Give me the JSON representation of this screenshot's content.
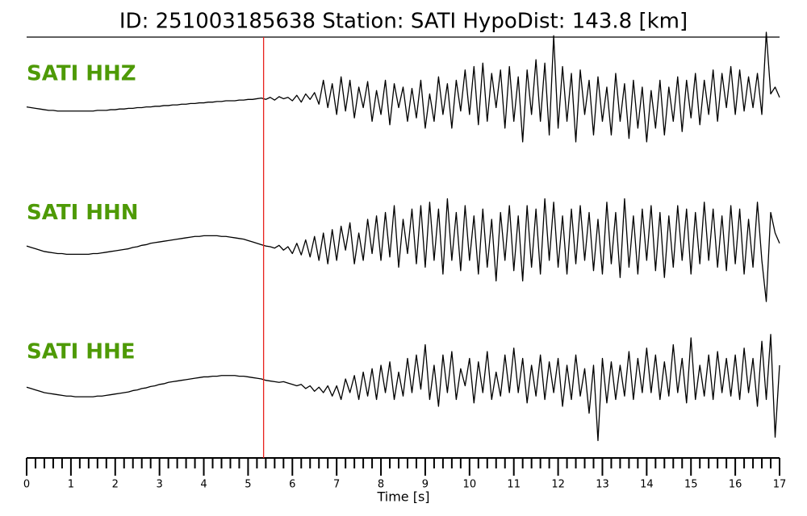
{
  "chart_data": {
    "type": "line",
    "stacked_panels": true,
    "title": "ID: 251003185638   Station: SATI   HypoDist:   143.8 [km]",
    "xlabel": "Time [s]",
    "xlim": [
      0,
      17
    ],
    "xticks": [
      0,
      1,
      2,
      3,
      4,
      5,
      6,
      7,
      8,
      9,
      10,
      11,
      12,
      13,
      14,
      15,
      16,
      17
    ],
    "xminorticks": [
      0.2,
      0.4,
      0.6,
      0.8,
      1.2,
      1.4,
      1.6,
      1.8,
      2.2,
      2.4,
      2.6,
      2.8,
      3.2,
      3.4,
      3.6,
      3.8,
      4.2,
      4.4,
      4.6,
      4.8,
      5.2,
      5.4,
      5.6,
      5.8,
      6.2,
      6.4,
      6.6,
      6.8,
      7.2,
      7.4,
      7.6,
      7.8,
      8.2,
      8.4,
      8.6,
      8.8,
      9.2,
      9.4,
      9.6,
      9.8,
      10.2,
      10.4,
      10.6,
      10.8,
      11.2,
      11.4,
      11.6,
      11.8,
      12.2,
      12.4,
      12.6,
      12.8,
      13.2,
      13.4,
      13.6,
      13.8,
      14.2,
      14.4,
      14.6,
      14.8,
      15.2,
      15.4,
      15.6,
      15.8,
      16.2,
      16.4,
      16.6,
      16.8
    ],
    "ylim": [
      -1,
      1
    ],
    "label_color": "#4e9a06",
    "markers": [
      {
        "x": 5.35,
        "color": "#e8211c"
      }
    ],
    "x": [
      0.0,
      0.1,
      0.2,
      0.3,
      0.4,
      0.5,
      0.6,
      0.7,
      0.8,
      0.9,
      1.0,
      1.1,
      1.2,
      1.3,
      1.4,
      1.5,
      1.6,
      1.7,
      1.8,
      1.9,
      2.0,
      2.1,
      2.2,
      2.3,
      2.4,
      2.5,
      2.6,
      2.7,
      2.8,
      2.9,
      3.0,
      3.1,
      3.2,
      3.3,
      3.4,
      3.5,
      3.6,
      3.7,
      3.8,
      3.9,
      4.0,
      4.1,
      4.2,
      4.3,
      4.4,
      4.5,
      4.6,
      4.7,
      4.8,
      4.9,
      5.0,
      5.1,
      5.2,
      5.3,
      5.4,
      5.5,
      5.6,
      5.7,
      5.8,
      5.9,
      6.0,
      6.1,
      6.2,
      6.3,
      6.4,
      6.5,
      6.6,
      6.7,
      6.8,
      6.9,
      7.0,
      7.1,
      7.2,
      7.3,
      7.4,
      7.5,
      7.6,
      7.7,
      7.8,
      7.9,
      8.0,
      8.1,
      8.2,
      8.3,
      8.4,
      8.5,
      8.6,
      8.7,
      8.8,
      8.9,
      9.0,
      9.1,
      9.2,
      9.3,
      9.4,
      9.5,
      9.6,
      9.7,
      9.8,
      9.9,
      10.0,
      10.1,
      10.2,
      10.3,
      10.4,
      10.5,
      10.6,
      10.7,
      10.8,
      10.9,
      11.0,
      11.1,
      11.2,
      11.3,
      11.4,
      11.5,
      11.6,
      11.7,
      11.8,
      11.9,
      12.0,
      12.1,
      12.2,
      12.3,
      12.4,
      12.5,
      12.6,
      12.7,
      12.8,
      12.9,
      13.0,
      13.1,
      13.2,
      13.3,
      13.4,
      13.5,
      13.6,
      13.7,
      13.8,
      13.9,
      14.0,
      14.1,
      14.2,
      14.3,
      14.4,
      14.5,
      14.6,
      14.7,
      14.8,
      14.9,
      15.0,
      15.1,
      15.2,
      15.3,
      15.4,
      15.5,
      15.6,
      15.7,
      15.8,
      15.9,
      16.0,
      16.1,
      16.2,
      16.3,
      16.4,
      16.5,
      16.6,
      16.7,
      16.8,
      16.9,
      17.0
    ],
    "series": [
      {
        "name": "SATI HHZ",
        "color": "#000000",
        "values": [
          -0.09,
          -0.1,
          -0.11,
          -0.12,
          -0.13,
          -0.14,
          -0.14,
          -0.15,
          -0.15,
          -0.15,
          -0.15,
          -0.15,
          -0.15,
          -0.15,
          -0.15,
          -0.15,
          -0.14,
          -0.14,
          -0.14,
          -0.13,
          -0.13,
          -0.12,
          -0.12,
          -0.11,
          -0.11,
          -0.1,
          -0.1,
          -0.09,
          -0.09,
          -0.08,
          -0.08,
          -0.07,
          -0.07,
          -0.06,
          -0.06,
          -0.05,
          -0.05,
          -0.04,
          -0.04,
          -0.03,
          -0.03,
          -0.02,
          -0.02,
          -0.01,
          -0.01,
          0.0,
          0.0,
          0.0,
          0.01,
          0.01,
          0.02,
          0.02,
          0.03,
          0.04,
          0.02,
          0.05,
          0.01,
          0.06,
          0.03,
          0.05,
          0.0,
          0.08,
          -0.02,
          0.1,
          0.02,
          0.12,
          -0.05,
          0.3,
          -0.1,
          0.25,
          -0.2,
          0.35,
          -0.15,
          0.3,
          -0.25,
          0.2,
          -0.1,
          0.28,
          -0.3,
          0.15,
          -0.2,
          0.3,
          -0.35,
          0.25,
          -0.1,
          0.2,
          -0.3,
          0.18,
          -0.25,
          0.3,
          -0.4,
          0.1,
          -0.3,
          0.35,
          -0.2,
          0.25,
          -0.4,
          0.3,
          -0.15,
          0.45,
          -0.2,
          0.5,
          -0.35,
          0.55,
          -0.3,
          0.4,
          -0.1,
          0.45,
          -0.4,
          0.5,
          -0.3,
          0.35,
          -0.6,
          0.45,
          -0.2,
          0.6,
          -0.3,
          0.55,
          -0.5,
          0.95,
          -0.4,
          0.5,
          -0.3,
          0.4,
          -0.6,
          0.45,
          -0.2,
          0.3,
          -0.5,
          0.35,
          -0.3,
          0.2,
          -0.5,
          0.4,
          -0.3,
          0.25,
          -0.55,
          0.3,
          -0.4,
          0.2,
          -0.6,
          0.15,
          -0.4,
          0.3,
          -0.5,
          0.2,
          -0.3,
          0.35,
          -0.45,
          0.3,
          -0.25,
          0.4,
          -0.35,
          0.3,
          -0.2,
          0.45,
          -0.3,
          0.4,
          -0.1,
          0.5,
          -0.2,
          0.45,
          -0.15,
          0.35,
          -0.1,
          0.4,
          -0.2,
          1.0,
          0.1,
          0.2,
          0.05
        ]
      },
      {
        "name": "SATI HHN",
        "color": "#000000",
        "values": [
          -0.09,
          -0.11,
          -0.13,
          -0.15,
          -0.17,
          -0.18,
          -0.19,
          -0.2,
          -0.2,
          -0.21,
          -0.21,
          -0.21,
          -0.21,
          -0.21,
          -0.21,
          -0.2,
          -0.2,
          -0.19,
          -0.18,
          -0.17,
          -0.16,
          -0.15,
          -0.14,
          -0.13,
          -0.11,
          -0.1,
          -0.08,
          -0.07,
          -0.05,
          -0.04,
          -0.03,
          -0.02,
          -0.01,
          0.0,
          0.01,
          0.02,
          0.03,
          0.04,
          0.05,
          0.05,
          0.06,
          0.06,
          0.06,
          0.06,
          0.05,
          0.05,
          0.04,
          0.03,
          0.02,
          0.01,
          -0.01,
          -0.03,
          -0.05,
          -0.07,
          -0.09,
          -0.1,
          -0.12,
          -0.08,
          -0.15,
          -0.1,
          -0.2,
          -0.05,
          -0.22,
          0.0,
          -0.25,
          0.05,
          -0.3,
          0.1,
          -0.35,
          0.15,
          -0.3,
          0.2,
          -0.15,
          0.25,
          -0.35,
          0.1,
          -0.3,
          0.3,
          -0.2,
          0.35,
          -0.3,
          0.4,
          -0.25,
          0.5,
          -0.4,
          0.3,
          -0.2,
          0.45,
          -0.35,
          0.5,
          -0.4,
          0.55,
          -0.3,
          0.45,
          -0.5,
          0.6,
          -0.3,
          0.4,
          -0.45,
          0.5,
          -0.3,
          0.35,
          -0.5,
          0.45,
          -0.4,
          0.3,
          -0.6,
          0.4,
          -0.3,
          0.5,
          -0.45,
          0.35,
          -0.6,
          0.5,
          -0.4,
          0.45,
          -0.5,
          0.6,
          -0.3,
          0.55,
          -0.4,
          0.35,
          -0.5,
          0.45,
          -0.35,
          0.5,
          -0.3,
          0.4,
          -0.45,
          0.3,
          -0.5,
          0.55,
          -0.35,
          0.4,
          -0.55,
          0.6,
          -0.4,
          0.35,
          -0.5,
          0.45,
          -0.3,
          0.5,
          -0.45,
          0.4,
          -0.55,
          0.35,
          -0.4,
          0.5,
          -0.3,
          0.45,
          -0.5,
          0.4,
          -0.35,
          0.55,
          -0.3,
          0.45,
          -0.4,
          0.35,
          -0.45,
          0.5,
          -0.35,
          0.45,
          -0.5,
          0.3,
          -0.4,
          0.55,
          -0.3,
          -0.9,
          0.4,
          0.1,
          -0.05
        ]
      },
      {
        "name": "SATI HHE",
        "color": "#000000",
        "values": [
          -0.12,
          -0.14,
          -0.16,
          -0.18,
          -0.2,
          -0.21,
          -0.22,
          -0.23,
          -0.24,
          -0.25,
          -0.25,
          -0.26,
          -0.26,
          -0.26,
          -0.26,
          -0.26,
          -0.25,
          -0.25,
          -0.24,
          -0.23,
          -0.22,
          -0.21,
          -0.2,
          -0.19,
          -0.17,
          -0.16,
          -0.14,
          -0.13,
          -0.11,
          -0.1,
          -0.08,
          -0.07,
          -0.05,
          -0.04,
          -0.03,
          -0.02,
          -0.01,
          0.0,
          0.01,
          0.02,
          0.03,
          0.03,
          0.04,
          0.04,
          0.05,
          0.05,
          0.05,
          0.05,
          0.04,
          0.04,
          0.03,
          0.02,
          0.01,
          0.0,
          -0.02,
          -0.03,
          -0.04,
          -0.05,
          -0.04,
          -0.06,
          -0.08,
          -0.1,
          -0.08,
          -0.14,
          -0.1,
          -0.18,
          -0.12,
          -0.2,
          -0.1,
          -0.25,
          -0.1,
          -0.3,
          0.0,
          -0.2,
          0.05,
          -0.3,
          0.1,
          -0.25,
          0.15,
          -0.3,
          0.2,
          -0.2,
          0.25,
          -0.3,
          0.1,
          -0.25,
          0.3,
          -0.2,
          0.35,
          -0.15,
          0.5,
          -0.3,
          0.2,
          -0.4,
          0.35,
          -0.2,
          0.4,
          -0.3,
          0.15,
          -0.1,
          0.3,
          -0.35,
          0.25,
          -0.2,
          0.4,
          -0.3,
          0.1,
          -0.25,
          0.35,
          -0.2,
          0.45,
          -0.2,
          0.3,
          -0.35,
          0.2,
          -0.25,
          0.35,
          -0.3,
          0.25,
          -0.2,
          0.3,
          -0.4,
          0.2,
          -0.3,
          0.35,
          -0.25,
          0.15,
          -0.5,
          0.2,
          -0.9,
          0.3,
          -0.35,
          0.25,
          -0.3,
          0.2,
          -0.25,
          0.4,
          -0.3,
          0.3,
          -0.2,
          0.45,
          -0.2,
          0.35,
          -0.3,
          0.25,
          -0.25,
          0.5,
          -0.2,
          0.3,
          -0.35,
          0.6,
          -0.3,
          0.2,
          -0.25,
          0.35,
          -0.3,
          0.4,
          -0.2,
          0.3,
          -0.25,
          0.35,
          -0.3,
          0.45,
          -0.2,
          0.3,
          -0.4,
          0.55,
          -0.3,
          0.65,
          -0.85,
          0.2
        ]
      }
    ]
  }
}
